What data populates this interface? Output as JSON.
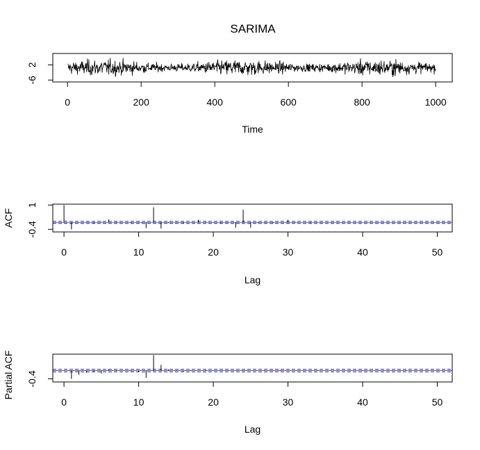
{
  "title": "SARIMA",
  "chart_data": [
    {
      "type": "line",
      "name": "time-series",
      "xlabel": "Time",
      "ylabel": "",
      "xlim": [
        -40,
        1045
      ],
      "ylim": [
        -7,
        8
      ],
      "xticks": [
        0,
        200,
        400,
        600,
        800,
        1000
      ],
      "yticks": [
        -6,
        2
      ],
      "x_start": 1,
      "x_end": 1000,
      "y_range_observed": [
        -7,
        8
      ],
      "typical_band": [
        -2,
        3
      ],
      "grid": false
    },
    {
      "type": "bar",
      "name": "acf",
      "xlabel": "Lag",
      "ylabel": "ACF",
      "xlim": [
        -1.5,
        52
      ],
      "ylim": [
        -0.55,
        1.05
      ],
      "xticks": [
        0,
        10,
        20,
        30,
        40,
        50
      ],
      "yticks": [
        -0.4,
        1.0
      ],
      "ci": 0.062,
      "lags": [
        0,
        1,
        2,
        3,
        4,
        5,
        6,
        7,
        8,
        9,
        10,
        11,
        12,
        13,
        14,
        15,
        16,
        17,
        18,
        19,
        20,
        21,
        22,
        23,
        24,
        25,
        26,
        27,
        28,
        29,
        30,
        31,
        32,
        33,
        34,
        35,
        36,
        37,
        38,
        39,
        40,
        41,
        42,
        43,
        44,
        45,
        46,
        47,
        48,
        49,
        50
      ],
      "values": [
        1.0,
        -0.4,
        -0.02,
        0.02,
        -0.05,
        0.03,
        0.18,
        0.03,
        0.02,
        -0.03,
        0.02,
        -0.33,
        0.87,
        -0.35,
        -0.03,
        0.02,
        -0.05,
        0.02,
        0.16,
        0.03,
        0.02,
        -0.04,
        0.02,
        -0.3,
        0.73,
        -0.3,
        -0.04,
        0.02,
        -0.05,
        0.02,
        0.15,
        0.02,
        0.01,
        -0.03,
        0.01,
        -0.01,
        0.01,
        0.01,
        0.0,
        -0.01,
        0.01,
        0.0,
        0.0,
        -0.01,
        0.01,
        0.0,
        0.0,
        0.01,
        -0.01,
        0.0,
        0.0
      ],
      "grid": false
    },
    {
      "type": "bar",
      "name": "pacf",
      "xlabel": "Lag",
      "ylabel": "Partial ACF",
      "xlim": [
        -1.5,
        52
      ],
      "ylim": [
        -0.55,
        0.8
      ],
      "xticks": [
        0,
        10,
        20,
        30,
        40,
        50
      ],
      "yticks": [
        -0.4
      ],
      "ci": 0.062,
      "lags": [
        1,
        2,
        3,
        4,
        5,
        6,
        7,
        8,
        9,
        10,
        11,
        12,
        13,
        14,
        15,
        16,
        17,
        18,
        19,
        20,
        21,
        22,
        23,
        24,
        25,
        26,
        27,
        28,
        29,
        30,
        31,
        32,
        33,
        34,
        35,
        36,
        37,
        38,
        39,
        40,
        41,
        42,
        43,
        44,
        45,
        46,
        47,
        48,
        49,
        50
      ],
      "values": [
        -0.4,
        -0.2,
        -0.1,
        -0.06,
        -0.14,
        0.06,
        0.03,
        0.02,
        -0.03,
        -0.05,
        -0.35,
        0.75,
        0.28,
        0.06,
        0.02,
        -0.03,
        0.02,
        0.01,
        0.02,
        0.01,
        -0.01,
        0.02,
        0.01,
        0.02,
        0.01,
        0.0,
        -0.01,
        0.01,
        0.02,
        0.01,
        -0.01,
        0.0,
        0.01,
        0.01,
        0.0,
        0.0,
        0.01,
        -0.01,
        0.0,
        0.01,
        0.0,
        -0.01,
        0.0,
        0.0,
        0.01,
        0.0,
        0.0,
        0.0,
        0.0,
        0.0
      ],
      "grid": false
    }
  ]
}
